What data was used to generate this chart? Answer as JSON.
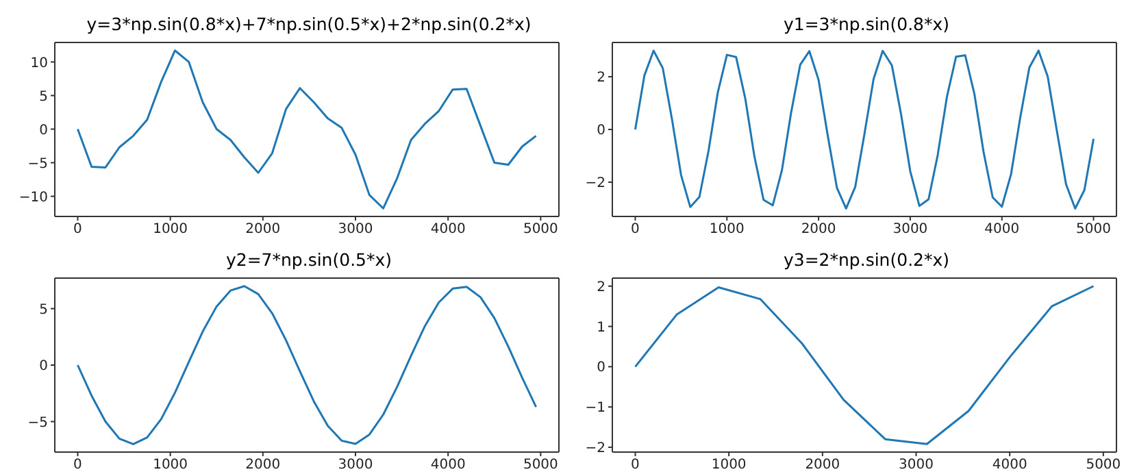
{
  "chart_data": [
    {
      "type": "line",
      "title": "y=3*np.sin(0.8*x)+7*np.sin(0.5*x)+2*np.sin(0.2*x)",
      "x": [
        0,
        150,
        300,
        450,
        600,
        750,
        900,
        1050,
        1200,
        1350,
        1500,
        1650,
        1800,
        1950,
        2100,
        2250,
        2400,
        2550,
        2700,
        2850,
        3000,
        3150,
        3300,
        3450,
        3600,
        3750,
        3900,
        4050,
        4200,
        4350,
        4500,
        4650,
        4800,
        4950
      ],
      "series": [
        {
          "color": "#1f77b4",
          "values": [
            0,
            -5.6,
            -5.7,
            -2.7,
            -1,
            1.4,
            7,
            11.7,
            10,
            4,
            0,
            -1.6,
            -4.2,
            -6.5,
            -3.6,
            3,
            6.1,
            4,
            1.6,
            0.2,
            -3.8,
            -9.8,
            -11.8,
            -7.3,
            -1.6,
            0.8,
            2.7,
            5.9,
            6,
            0.5,
            -5,
            -5.3,
            -2.6,
            -1
          ]
        }
      ],
      "xlim": [
        -247.5,
        5197
      ],
      "xticks": [
        0,
        1000,
        2000,
        3000,
        4000,
        5000
      ],
      "ylim": [
        -13,
        12.9
      ],
      "yticks": [
        -10,
        -5,
        0,
        5,
        10
      ],
      "grid": false,
      "legend": false
    },
    {
      "type": "line",
      "title": "y1=3*np.sin(0.8*x)",
      "x": [
        0,
        100,
        200,
        300,
        400,
        500,
        600,
        700,
        800,
        900,
        1000,
        1100,
        1200,
        1300,
        1400,
        1500,
        1600,
        1700,
        1800,
        1900,
        2000,
        2100,
        2200,
        2300,
        2400,
        2500,
        2600,
        2700,
        2800,
        2900,
        3000,
        3100,
        3200,
        3300,
        3400,
        3500,
        3600,
        3700,
        3800,
        3900,
        4000,
        4100,
        4200,
        4300,
        4400,
        4500,
        4600,
        4700,
        4800,
        4900,
        5000
      ],
      "series": [
        {
          "color": "#1f77b4",
          "values": [
            0,
            2.05,
            2.99,
            2.33,
            0.4,
            -1.73,
            -2.94,
            -2.56,
            -0.8,
            1.39,
            2.83,
            2.75,
            1.18,
            -1.02,
            -2.67,
            -2.88,
            -1.55,
            0.63,
            2.46,
            2.97,
            1.88,
            -0.23,
            -2.21,
            -3,
            -2.18,
            -0.18,
            1.91,
            2.98,
            2.43,
            0.58,
            -1.58,
            -2.9,
            -2.65,
            -0.97,
            1.23,
            2.76,
            2.81,
            1.35,
            -0.85,
            -2.58,
            -2.93,
            -1.7,
            0.45,
            2.35,
            2.99,
            2.01,
            -0.05,
            -2.08,
            -3,
            -2.3,
            -0.36
          ]
        }
      ],
      "xlim": [
        -250,
        5250
      ],
      "xticks": [
        0,
        1000,
        2000,
        3000,
        4000,
        5000
      ],
      "ylim": [
        -3.3,
        3.3
      ],
      "yticks": [
        -2,
        0,
        2
      ],
      "grid": false,
      "legend": false
    },
    {
      "type": "line",
      "title": "y2=7*np.sin(0.5*x)",
      "x": [
        0,
        150,
        300,
        450,
        600,
        750,
        900,
        1050,
        1200,
        1350,
        1500,
        1650,
        1800,
        1950,
        2100,
        2250,
        2400,
        2550,
        2700,
        2850,
        3000,
        3150,
        3300,
        3450,
        3600,
        3750,
        3900,
        4050,
        4200,
        4350,
        4500,
        4650,
        4800,
        4950
      ],
      "series": [
        {
          "color": "#1f77b4",
          "values": [
            0,
            -2.71,
            -5,
            -6.51,
            -7,
            -6.4,
            -4.8,
            -2.45,
            0.28,
            2.97,
            5.19,
            6.6,
            6.99,
            6.28,
            4.59,
            2.19,
            -0.56,
            -3.21,
            -5.37,
            -6.69,
            -6.97,
            -6.15,
            -4.38,
            -1.92,
            0.83,
            3.46,
            5.55,
            6.77,
            6.93,
            6.01,
            4.16,
            1.65,
            -1.11,
            -3.7
          ]
        }
      ],
      "xlim": [
        -247.5,
        5197
      ],
      "xticks": [
        0,
        1000,
        2000,
        3000,
        4000,
        5000
      ],
      "ylim": [
        -7.7,
        7.7
      ],
      "yticks": [
        -5,
        0,
        5
      ],
      "grid": false,
      "legend": false
    },
    {
      "type": "line",
      "title": "y3=2*np.sin(0.2*x)",
      "x": [
        0,
        445,
        890,
        1335,
        1780,
        2225,
        2670,
        3115,
        3560,
        4005,
        4450,
        4895
      ],
      "series": [
        {
          "color": "#1f77b4",
          "values": [
            0,
            1.3,
            1.97,
            1.68,
            0.58,
            -0.82,
            -1.8,
            -1.92,
            -1.1,
            0.25,
            1.5,
            2
          ]
        }
      ],
      "xlim": [
        -245,
        5140
      ],
      "xticks": [
        0,
        1000,
        2000,
        3000,
        4000,
        5000
      ],
      "ylim": [
        -2.12,
        2.2
      ],
      "yticks": [
        -2,
        -1,
        0,
        1,
        2
      ],
      "grid": false,
      "legend": false
    }
  ]
}
